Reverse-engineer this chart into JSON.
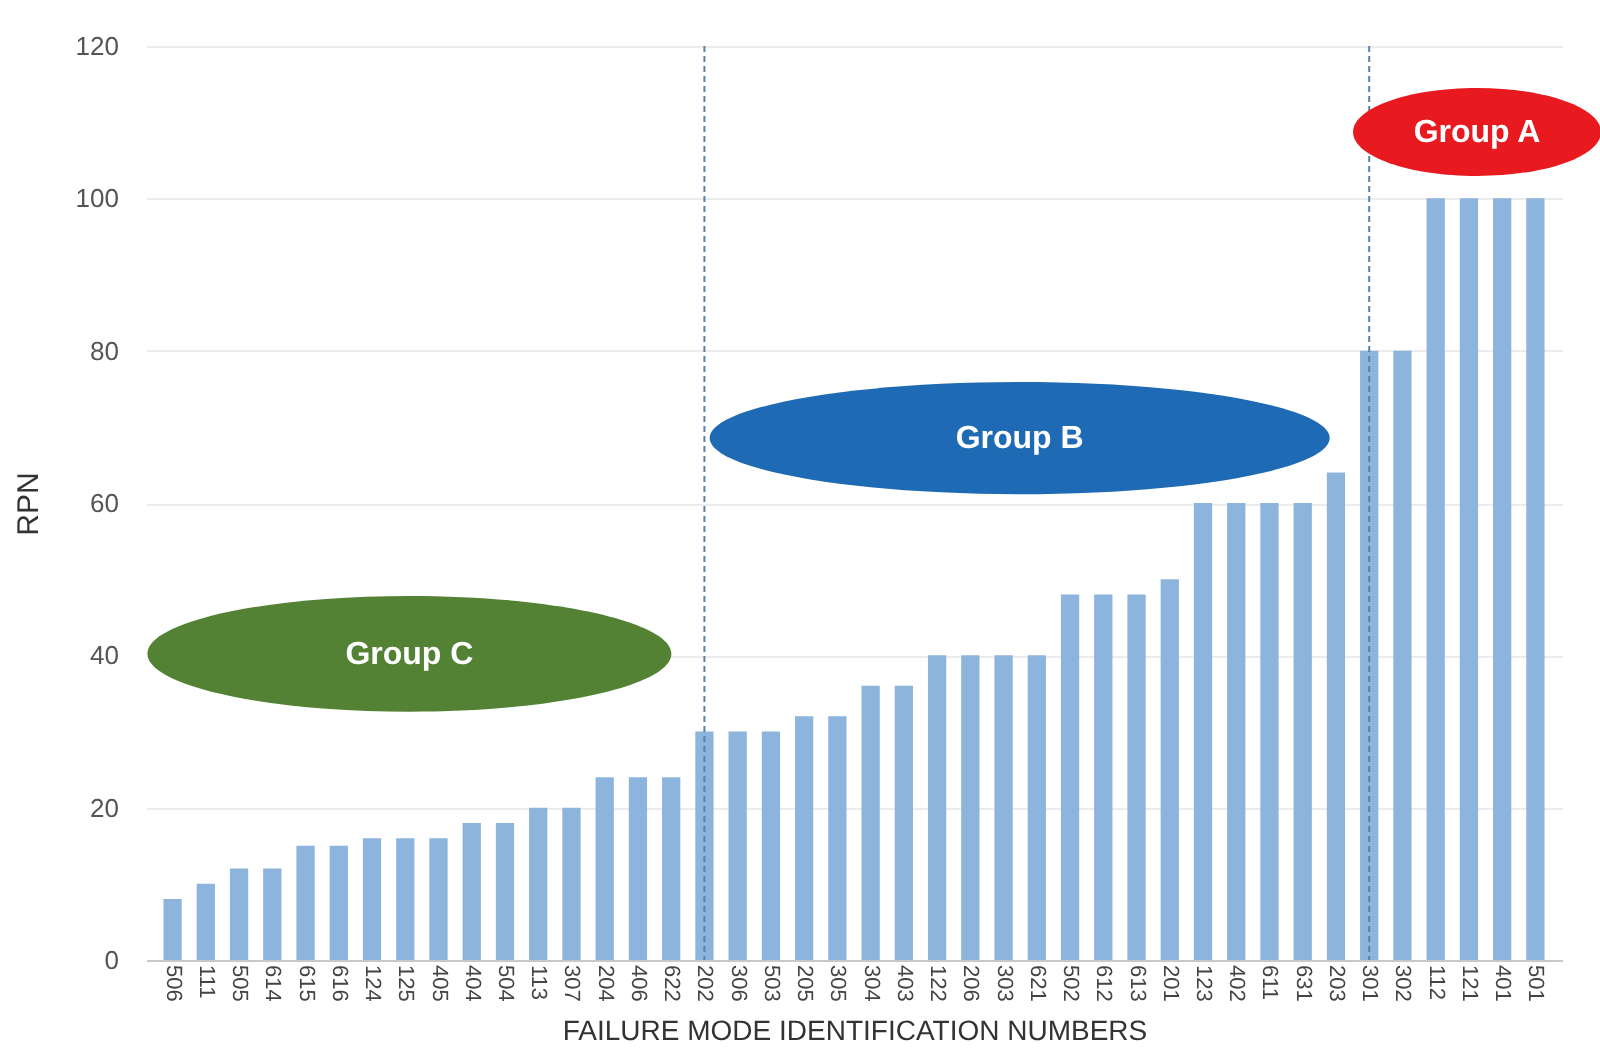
{
  "chart_data": {
    "type": "bar",
    "xlabel": "FAILURE MODE IDENTIFICATION NUMBERS",
    "ylabel": "RPN",
    "categories": [
      "506",
      "111",
      "505",
      "614",
      "615",
      "616",
      "124",
      "125",
      "405",
      "404",
      "504",
      "113",
      "307",
      "204",
      "406",
      "622",
      "202",
      "306",
      "503",
      "205",
      "305",
      "304",
      "403",
      "122",
      "206",
      "303",
      "621",
      "502",
      "612",
      "613",
      "201",
      "123",
      "402",
      "611",
      "631",
      "203",
      "301",
      "302",
      "112",
      "121",
      "401",
      "501"
    ],
    "values": [
      8,
      10,
      12,
      12,
      15,
      15,
      16,
      16,
      16,
      18,
      18,
      20,
      20,
      24,
      24,
      24,
      30,
      30,
      30,
      32,
      32,
      36,
      36,
      40,
      40,
      40,
      40,
      48,
      48,
      48,
      50,
      60,
      60,
      60,
      60,
      64,
      80,
      80,
      100,
      100,
      100,
      100
    ],
    "color": "#8db4dc",
    "ylim": [
      0,
      120
    ],
    "yticks": [
      0,
      20,
      40,
      60,
      80,
      100,
      120
    ],
    "grid": "y",
    "ref_lines": [
      {
        "axis": "x",
        "value": "202",
        "line_style": "dashed",
        "color": "#5a7fa8"
      },
      {
        "axis": "x",
        "value": "301",
        "line_style": "dashed",
        "color": "#5a7fa8"
      }
    ],
    "annotations": [
      "Group C",
      "Group B",
      "Group A"
    ]
  }
}
